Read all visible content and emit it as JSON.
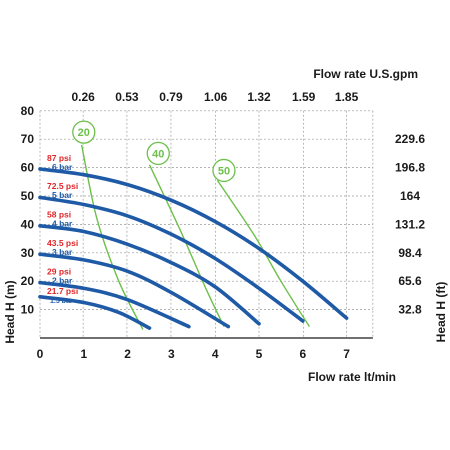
{
  "chart_data": {
    "type": "line",
    "xlabel": "Flow rate  lt/min",
    "x2label": "Flow rate U.S.gpm",
    "ylabel": "Head H (m)",
    "y2label": "Head H (ft)",
    "xlim": [
      0,
      8
    ],
    "ylim": [
      0,
      80
    ],
    "x_ticks": [
      "0",
      "1",
      "2",
      "3",
      "4",
      "5",
      "6",
      "7"
    ],
    "y_ticks": [
      "10",
      "20",
      "30",
      "40",
      "50",
      "60",
      "70",
      "80"
    ],
    "top_ticks": [
      {
        "x": 0.985,
        "label": "0.26"
      },
      {
        "x": 1.985,
        "label": "0.53"
      },
      {
        "x": 2.99,
        "label": "0.79"
      },
      {
        "x": 4.01,
        "label": "1.06"
      },
      {
        "x": 5.0,
        "label": "1.32"
      },
      {
        "x": 6.02,
        "label": "1.59"
      },
      {
        "x": 7.0,
        "label": "1.85"
      }
    ],
    "right_ticks": [
      {
        "y": 70,
        "label": "229.6"
      },
      {
        "y": 60,
        "label": "196.8"
      },
      {
        "y": 50,
        "label": "164"
      },
      {
        "y": 40,
        "label": "131.2"
      },
      {
        "y": 30,
        "label": "98.4"
      },
      {
        "y": 20,
        "label": "65.6"
      },
      {
        "y": 10,
        "label": "32.8"
      }
    ],
    "grid": "dashed",
    "pressure_series": [
      {
        "psi": "87 psi",
        "bar": "6 bar",
        "label_y": 61,
        "points": [
          [
            0,
            59.5
          ],
          [
            1,
            57.5
          ],
          [
            2,
            54
          ],
          [
            3,
            48.5
          ],
          [
            4,
            41
          ],
          [
            5,
            31.5
          ],
          [
            6,
            20
          ],
          [
            7,
            7
          ]
        ]
      },
      {
        "psi": "72.5 psi",
        "bar": "5 bar",
        "label_y": 51,
        "points": [
          [
            0,
            49.5
          ],
          [
            1,
            47
          ],
          [
            2,
            43
          ],
          [
            3,
            36.5
          ],
          [
            4,
            28
          ],
          [
            5,
            17.5
          ],
          [
            6,
            6
          ]
        ]
      },
      {
        "psi": "58 psi",
        "bar": "4 bar",
        "label_y": 41,
        "points": [
          [
            0,
            39.5
          ],
          [
            1,
            37.5
          ],
          [
            2,
            33
          ],
          [
            3,
            26.5
          ],
          [
            4,
            18
          ],
          [
            5,
            5
          ]
        ]
      },
      {
        "psi": "43.5 psi",
        "bar": "3 bar",
        "label_y": 31,
        "points": [
          [
            0,
            29.5
          ],
          [
            1,
            27.5
          ],
          [
            2,
            23.5
          ],
          [
            3,
            16
          ],
          [
            4.3,
            4
          ]
        ]
      },
      {
        "psi": "29 psi",
        "bar": "2 bar",
        "label_y": 21,
        "points": [
          [
            0,
            19.5
          ],
          [
            1,
            17.5
          ],
          [
            2,
            13.5
          ],
          [
            3.4,
            4
          ]
        ]
      },
      {
        "psi": "21.7 psi",
        "bar": "1.5 bar",
        "label_y": 14,
        "points": [
          [
            0,
            14.5
          ],
          [
            1,
            12.5
          ],
          [
            1.8,
            9
          ],
          [
            2.5,
            3.5
          ]
        ]
      }
    ],
    "air_series": [
      {
        "name": "20",
        "circle": [
          1.0,
          72.5
        ],
        "points": [
          [
            0.95,
            68
          ],
          [
            1.3,
            42
          ],
          [
            1.8,
            20
          ],
          [
            2.35,
            3
          ]
        ]
      },
      {
        "name": "40",
        "circle": [
          2.7,
          65
        ],
        "points": [
          [
            2.5,
            61
          ],
          [
            3.2,
            38
          ],
          [
            3.8,
            17
          ],
          [
            4.2,
            4
          ]
        ]
      },
      {
        "name": "50",
        "circle": [
          4.2,
          59
        ],
        "points": [
          [
            4.05,
            55.5
          ],
          [
            4.9,
            36
          ],
          [
            5.5,
            20
          ],
          [
            6.15,
            4
          ]
        ]
      }
    ]
  },
  "colors": {
    "pressure_line": "#1f5aa6",
    "air_line": "#6cc04a",
    "psi_text": "#e0262a",
    "bar_text": "#1f5aa6",
    "grid": "#9a9a9a",
    "axis": "#1a1a1a"
  }
}
